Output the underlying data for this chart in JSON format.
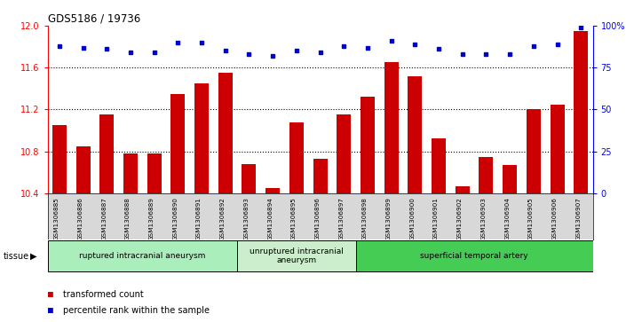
{
  "title": "GDS5186 / 19736",
  "samples": [
    "GSM1306885",
    "GSM1306886",
    "GSM1306887",
    "GSM1306888",
    "GSM1306889",
    "GSM1306890",
    "GSM1306891",
    "GSM1306892",
    "GSM1306893",
    "GSM1306894",
    "GSM1306895",
    "GSM1306896",
    "GSM1306897",
    "GSM1306898",
    "GSM1306899",
    "GSM1306900",
    "GSM1306901",
    "GSM1306902",
    "GSM1306903",
    "GSM1306904",
    "GSM1306905",
    "GSM1306906",
    "GSM1306907"
  ],
  "bar_values": [
    11.05,
    10.85,
    11.15,
    10.78,
    10.78,
    11.35,
    11.45,
    11.55,
    10.68,
    10.45,
    11.08,
    10.73,
    11.15,
    11.32,
    11.65,
    11.52,
    10.92,
    10.47,
    10.75,
    10.67,
    11.2,
    11.25,
    11.95
  ],
  "percentile_values": [
    88,
    87,
    86,
    84,
    84,
    90,
    90,
    85,
    83,
    82,
    85,
    84,
    88,
    87,
    91,
    89,
    86,
    83,
    83,
    83,
    88,
    89,
    99
  ],
  "bar_color": "#cc0000",
  "dot_color": "#0000cc",
  "ylim_left": [
    10.4,
    12.0
  ],
  "ylim_right": [
    0,
    100
  ],
  "yticks_left": [
    10.4,
    10.8,
    11.2,
    11.6,
    12.0
  ],
  "yticks_right": [
    0,
    25,
    50,
    75,
    100
  ],
  "ytick_labels_right": [
    "0",
    "25",
    "50",
    "75",
    "100%"
  ],
  "grid_values": [
    10.8,
    11.2,
    11.6
  ],
  "group_labels": [
    "ruptured intracranial aneurysm",
    "unruptured intracranial\naneurysm",
    "superficial temporal artery"
  ],
  "group_starts": [
    0,
    8,
    13
  ],
  "group_ends": [
    8,
    13,
    23
  ],
  "group_colors": [
    "#aaeebb",
    "#cceecc",
    "#44cc55"
  ],
  "tissue_label": "tissue",
  "bar_color_label": "transformed count",
  "dot_color_label": "percentile rank within the sample",
  "xtick_bg": "#d8d8d8",
  "plot_bg": "#ffffff"
}
